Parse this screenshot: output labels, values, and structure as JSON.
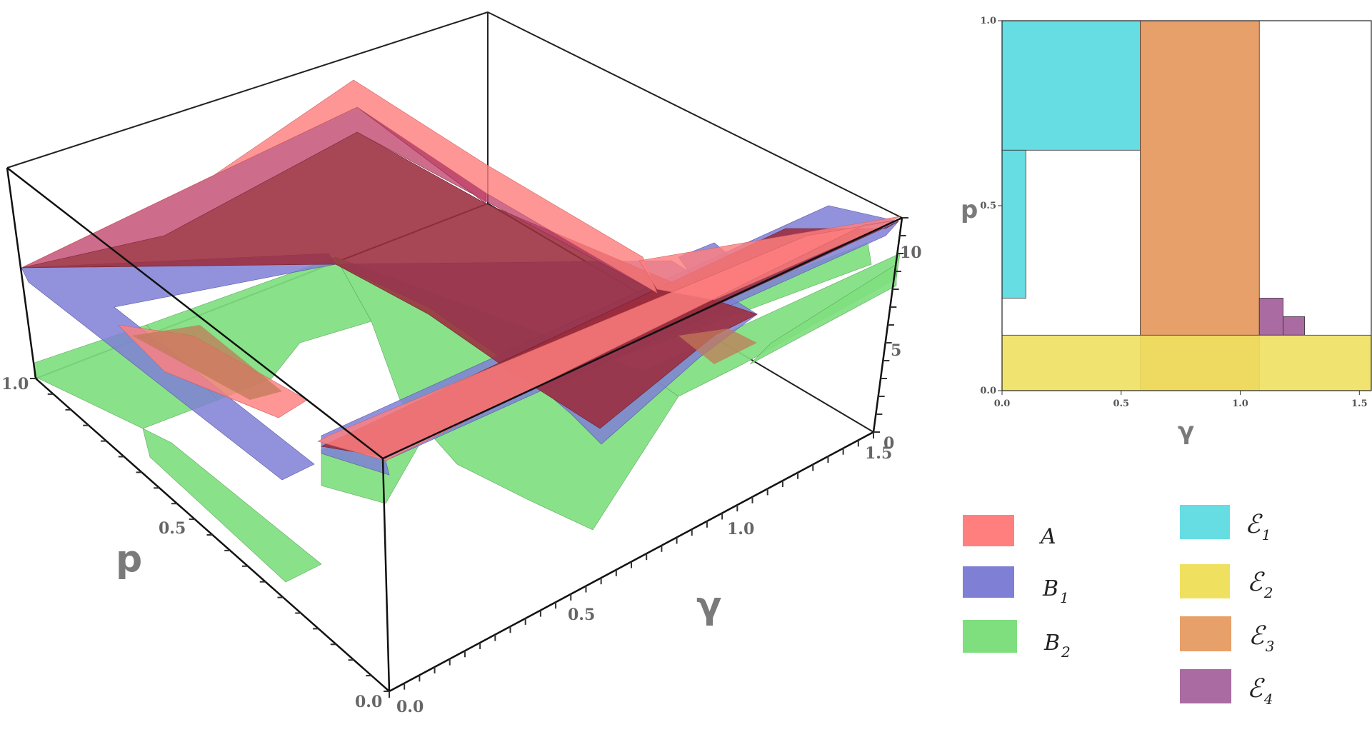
{
  "chart_data": [
    {
      "type": "surface3d",
      "xlabel": "γ",
      "ylabel": "p",
      "x_ticks": [
        "0.0",
        "0.5",
        "1.0",
        "1.5"
      ],
      "y_ticks": [
        "0.0",
        "0.5",
        "1.0"
      ],
      "z_ticks": [
        "0",
        "5",
        "10"
      ],
      "xlim": [
        0,
        1.6
      ],
      "ylim": [
        0,
        1.0
      ],
      "zlim": [
        0,
        12
      ],
      "series": [
        {
          "name": "A",
          "color": "#ff7f7f"
        },
        {
          "name": "B",
          "sub": "1",
          "color": "#7f7fd6"
        },
        {
          "name": "B",
          "sub": "2",
          "color": "#7fdf7f"
        }
      ]
    },
    {
      "type": "region",
      "xlabel": "γ",
      "ylabel": "p",
      "x_ticks": [
        {
          "v": 0.0,
          "label": "0.0"
        },
        {
          "v": 0.5,
          "label": "0.5"
        },
        {
          "v": 1.0,
          "label": "1.0"
        },
        {
          "v": 1.5,
          "label": "1.5"
        }
      ],
      "y_ticks": [
        {
          "v": 0.0,
          "label": "0.0"
        },
        {
          "v": 0.5,
          "label": "0.5"
        },
        {
          "v": 1.0,
          "label": "1.0"
        }
      ],
      "xlim": [
        0,
        1.55
      ],
      "ylim": [
        0,
        1.0
      ],
      "regions": [
        {
          "name": "E1",
          "color": "#66dde3",
          "rects": [
            [
              0.0,
              0.58,
              0.65,
              1.0
            ],
            [
              0.0,
              0.1,
              0.25,
              0.65
            ]
          ]
        },
        {
          "name": "E3",
          "color": "#e7a06a",
          "rects": [
            [
              0.58,
              1.08,
              0.0,
              1.0
            ]
          ]
        },
        {
          "name": "E4",
          "color": "#a96ba1",
          "rects": [
            [
              1.08,
              1.18,
              0.15,
              0.25
            ],
            [
              1.18,
              1.27,
              0.15,
              0.2
            ]
          ]
        },
        {
          "name": "E2",
          "color": "#f0e060",
          "opacity": 0.9,
          "rects": [
            [
              0.0,
              1.55,
              0.0,
              0.15
            ]
          ]
        }
      ]
    }
  ],
  "legend": [
    {
      "symbol": "A",
      "sub": "",
      "color": "#ff7f7f"
    },
    {
      "symbol": "B",
      "sub": "1",
      "color": "#7f7fd6"
    },
    {
      "symbol": "B",
      "sub": "2",
      "color": "#7fdf7f"
    },
    {
      "symbol": "ℰ",
      "sub": "1",
      "color": "#66dde3"
    },
    {
      "symbol": "ℰ",
      "sub": "2",
      "color": "#f0e060"
    },
    {
      "symbol": "ℰ",
      "sub": "3",
      "color": "#e7a06a"
    },
    {
      "symbol": "ℰ",
      "sub": "4",
      "color": "#a96ba1"
    }
  ]
}
